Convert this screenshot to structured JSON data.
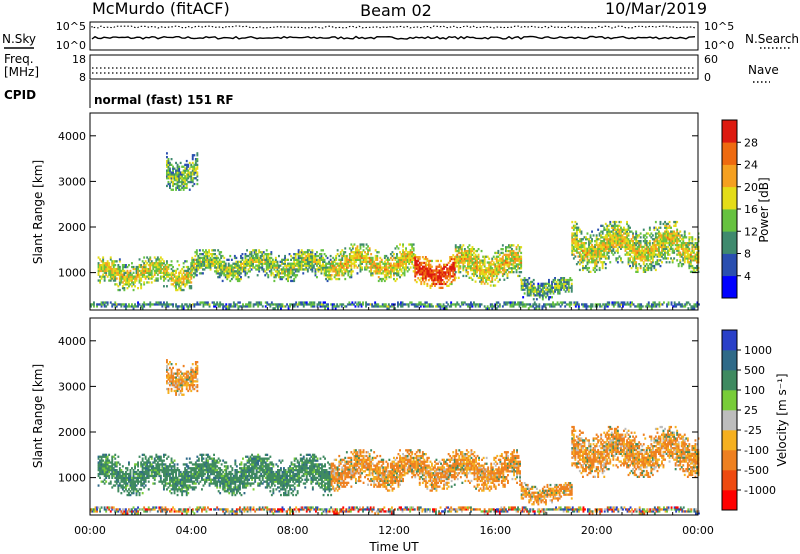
{
  "header": {
    "station": "McMurdo (fitACF)",
    "beam": "Beam 02",
    "date": "10/Mar/2019"
  },
  "status_panel": {
    "nsky_label": "N.Sky",
    "nsearch_label": "N.Search",
    "noise_ticks": [
      "10^5",
      "10^0"
    ],
    "freq_label_1": "Freq.",
    "freq_label_2": "[MHz]",
    "freq_ticks": [
      "18",
      "8"
    ],
    "nave_label": "Nave",
    "nave_ticks": [
      "60",
      "0"
    ],
    "cpid_label": "CPID",
    "cpid_text": "normal (fast) 151 RF"
  },
  "chart_data": [
    {
      "type": "heatmap",
      "name": "power",
      "ylabel": "Slant Range [km]",
      "xlim_hours": [
        0,
        24
      ],
      "ylim_km": [
        180,
        4500
      ],
      "yticks": [
        1000,
        2000,
        3000,
        4000
      ],
      "colorbar": {
        "label": "Power [dB]",
        "ticks": [
          "28",
          "24",
          "20",
          "16",
          "12",
          "8",
          "4"
        ],
        "range": [
          0,
          32
        ],
        "colors": [
          "#0000ff",
          "#2a4fb0",
          "#3f8a6e",
          "#66c240",
          "#e4dc18",
          "#f5a020",
          "#ee6a10",
          "#dd1a10"
        ]
      },
      "clusters": [
        {
          "t0": 0.3,
          "t1": 4.0,
          "r0": 600,
          "r1": 1350,
          "level": 0.55
        },
        {
          "t0": 4.0,
          "t1": 9.5,
          "r0": 800,
          "r1": 1500,
          "level": 0.45
        },
        {
          "t0": 9.5,
          "t1": 12.8,
          "r0": 800,
          "r1": 1600,
          "level": 0.6
        },
        {
          "t0": 12.8,
          "t1": 14.4,
          "r0": 650,
          "r1": 1400,
          "level": 0.95
        },
        {
          "t0": 14.4,
          "t1": 17.0,
          "r0": 700,
          "r1": 1600,
          "level": 0.6
        },
        {
          "t0": 17.0,
          "t1": 19.0,
          "r0": 400,
          "r1": 900,
          "level": 0.35
        },
        {
          "t0": 19.0,
          "t1": 24.0,
          "r0": 1000,
          "r1": 2100,
          "level": 0.55
        },
        {
          "t0": 3.0,
          "t1": 4.2,
          "r0": 2800,
          "r1": 3600,
          "level": 0.4
        },
        {
          "t0": 0.0,
          "t1": 24.0,
          "r0": 200,
          "r1": 350,
          "level": 0.3
        }
      ]
    },
    {
      "type": "heatmap",
      "name": "velocity",
      "ylabel": "Slant Range [km]",
      "xlabel": "Time UT",
      "xlim_hours": [
        0,
        24
      ],
      "ylim_km": [
        180,
        4500
      ],
      "yticks": [
        1000,
        2000,
        3000,
        4000
      ],
      "xticks": [
        "00:00",
        "04:00",
        "08:00",
        "12:00",
        "16:00",
        "20:00",
        "00:00"
      ],
      "colorbar": {
        "label": "Velocity [m s⁻¹]",
        "ticks": [
          "1000",
          "500",
          "100",
          "25",
          "-25",
          "-100",
          "-500",
          "-1000"
        ],
        "colors": [
          "#2a40c8",
          "#2f6a88",
          "#3f8a60",
          "#78cc38",
          "#bdbdbd",
          "#f5b020",
          "#ee8020",
          "#ee4a10",
          "#ff0000"
        ]
      },
      "clusters": [
        {
          "t0": 0.3,
          "t1": 9.5,
          "r0": 600,
          "r1": 1500,
          "level": "pos"
        },
        {
          "t0": 9.5,
          "t1": 17.0,
          "r0": 700,
          "r1": 1600,
          "level": "neg"
        },
        {
          "t0": 17.0,
          "t1": 19.0,
          "r0": 400,
          "r1": 900,
          "level": "neg"
        },
        {
          "t0": 19.0,
          "t1": 24.0,
          "r0": 1000,
          "r1": 2100,
          "level": "neg"
        },
        {
          "t0": 3.0,
          "t1": 4.2,
          "r0": 2800,
          "r1": 3600,
          "level": "neg"
        },
        {
          "t0": 0.0,
          "t1": 24.0,
          "r0": 200,
          "r1": 350,
          "level": "mix"
        }
      ]
    }
  ]
}
